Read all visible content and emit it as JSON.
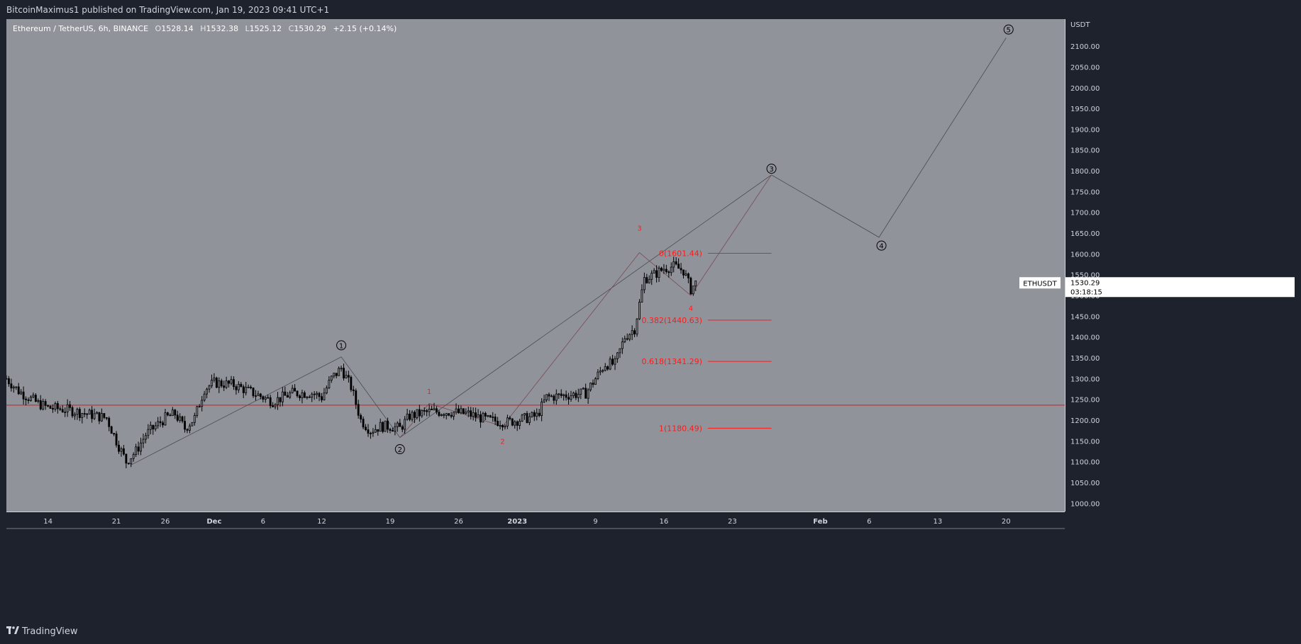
{
  "header": {
    "published_by": "BitcoinMaximus1 published on TradingView.com, Jan 19, 2023 09:41 UTC+1"
  },
  "legend": {
    "symbol": "Ethereum / TetherUS, 6h, BINANCE",
    "o_label": "O",
    "o_value": "1528.14",
    "h_label": "H",
    "h_value": "1532.38",
    "l_label": "L",
    "l_value": "1525.12",
    "c_label": "C",
    "c_value": "1530.29",
    "change": "+2.15 (+0.14%)"
  },
  "axis": {
    "currency": "USDT",
    "ticker_tag": "ETHUSDT",
    "last_price": "1530.29",
    "countdown": "03:18:15"
  },
  "footer": {
    "brand": "TradingView"
  },
  "colors": {
    "background": "#1e222d",
    "plot": "#91939b",
    "candle": "#000000",
    "fib": "#ff1a1a",
    "wave": "#4a4c52",
    "support": "#e01818"
  },
  "chart_data": {
    "type": "candlestick",
    "title": "Ethereum / TetherUS, 6h, BINANCE",
    "y_axis": {
      "unit": "USDT",
      "ylim": [
        980,
        2165
      ],
      "ticks": [
        1000,
        1050,
        1100,
        1150,
        1200,
        1250,
        1300,
        1350,
        1400,
        1450,
        1500,
        1550,
        1600,
        1650,
        1700,
        1750,
        1800,
        1850,
        1900,
        1950,
        2000,
        2050,
        2100
      ]
    },
    "x_axis": {
      "xlim": [
        "2022-11-09T18:00",
        "2023-02-26T00:00"
      ],
      "ticks": [
        {
          "label": "14",
          "date": "2022-11-14"
        },
        {
          "label": "21",
          "date": "2022-11-21"
        },
        {
          "label": "26",
          "date": "2022-11-26"
        },
        {
          "label": "Dec",
          "date": "2022-12-01"
        },
        {
          "label": "6",
          "date": "2022-12-06"
        },
        {
          "label": "12",
          "date": "2022-12-12"
        },
        {
          "label": "19",
          "date": "2022-12-19"
        },
        {
          "label": "26",
          "date": "2022-12-26"
        },
        {
          "label": "2023",
          "date": "2023-01-01"
        },
        {
          "label": "9",
          "date": "2023-01-09"
        },
        {
          "label": "16",
          "date": "2023-01-16"
        },
        {
          "label": "23",
          "date": "2023-01-23"
        },
        {
          "label": "Feb",
          "date": "2023-02-01"
        },
        {
          "label": "6",
          "date": "2023-02-06"
        },
        {
          "label": "13",
          "date": "2023-02-13"
        },
        {
          "label": "20",
          "date": "2023-02-20"
        }
      ]
    },
    "price_path": [
      [
        "2022-11-09T18:00",
        1300
      ],
      [
        "2022-11-11T00:00",
        1270
      ],
      [
        "2022-11-13T00:00",
        1240
      ],
      [
        "2022-11-14T00:00",
        1230
      ],
      [
        "2022-11-16T00:00",
        1225
      ],
      [
        "2022-11-18T00:00",
        1215
      ],
      [
        "2022-11-20T00:00",
        1205
      ],
      [
        "2022-11-21T00:00",
        1150
      ],
      [
        "2022-11-22T00:00",
        1100
      ],
      [
        "2022-11-23T00:00",
        1125
      ],
      [
        "2022-11-24T00:00",
        1165
      ],
      [
        "2022-11-26T00:00",
        1205
      ],
      [
        "2022-11-27T00:00",
        1215
      ],
      [
        "2022-11-28T00:00",
        1180
      ],
      [
        "2022-11-29T00:00",
        1205
      ],
      [
        "2022-11-30T00:00",
        1275
      ],
      [
        "2022-12-01T00:00",
        1290
      ],
      [
        "2022-12-03T00:00",
        1285
      ],
      [
        "2022-12-05T00:00",
        1265
      ],
      [
        "2022-12-07T00:00",
        1245
      ],
      [
        "2022-12-09T00:00",
        1265
      ],
      [
        "2022-12-11T00:00",
        1265
      ],
      [
        "2022-12-12T00:00",
        1255
      ],
      [
        "2022-12-13T00:00",
        1300
      ],
      [
        "2022-12-14T00:00",
        1325
      ],
      [
        "2022-12-15T00:00",
        1280
      ],
      [
        "2022-12-16T00:00",
        1200
      ],
      [
        "2022-12-17T00:00",
        1175
      ],
      [
        "2022-12-18T00:00",
        1185
      ],
      [
        "2022-12-19T00:00",
        1185
      ],
      [
        "2022-12-20T00:00",
        1180
      ],
      [
        "2022-12-21T00:00",
        1210
      ],
      [
        "2022-12-23T00:00",
        1220
      ],
      [
        "2022-12-25T00:00",
        1220
      ],
      [
        "2022-12-27T00:00",
        1215
      ],
      [
        "2022-12-29T00:00",
        1200
      ],
      [
        "2022-12-31T00:00",
        1195
      ],
      [
        "2023-01-02T00:00",
        1205
      ],
      [
        "2023-01-03T00:00",
        1210
      ],
      [
        "2023-01-04T00:00",
        1255
      ],
      [
        "2023-01-06T00:00",
        1260
      ],
      [
        "2023-01-08T00:00",
        1265
      ],
      [
        "2023-01-09T00:00",
        1300
      ],
      [
        "2023-01-10T00:00",
        1335
      ],
      [
        "2023-01-11T00:00",
        1335
      ],
      [
        "2023-01-12T00:00",
        1400
      ],
      [
        "2023-01-13T00:00",
        1420
      ],
      [
        "2023-01-14T00:00",
        1540
      ],
      [
        "2023-01-15T00:00",
        1550
      ],
      [
        "2023-01-16T00:00",
        1565
      ],
      [
        "2023-01-17T00:00",
        1570
      ],
      [
        "2023-01-18T00:00",
        1560
      ],
      [
        "2023-01-18T18:00",
        1515
      ],
      [
        "2023-01-19T06:00",
        1530
      ]
    ],
    "support_level": 1236,
    "fib_levels": [
      {
        "label": "0(1601.44)",
        "value": 1601.44
      },
      {
        "label": "0.382(1440.63)",
        "value": 1440.63
      },
      {
        "label": "0.618(1341.29)",
        "value": 1341.29
      },
      {
        "label": "1(1180.49)",
        "value": 1180.49
      }
    ],
    "wave_markers": [
      {
        "label": "1",
        "style": "circle",
        "date": "2022-12-14T00:00",
        "value": 1380
      },
      {
        "label": "2",
        "style": "circle",
        "date": "2022-12-20T00:00",
        "value": 1130
      },
      {
        "label": "3",
        "style": "circle",
        "date": "2023-01-27T00:00",
        "value": 1805
      },
      {
        "label": "4",
        "style": "circle",
        "date": "2023-02-07T06:00",
        "value": 1620
      },
      {
        "label": "5",
        "style": "circle",
        "date": "2023-02-20T06:00",
        "value": 2140
      },
      {
        "label": "1",
        "style": "sub",
        "date": "2022-12-23T00:00",
        "value": 1270
      },
      {
        "label": "2",
        "style": "sub",
        "date": "2022-12-30T12:00",
        "value": 1150
      },
      {
        "label": "3",
        "style": "sub",
        "date": "2023-01-13T12:00",
        "value": 1663
      },
      {
        "label": "4",
        "style": "sub",
        "date": "2023-01-18T18:00",
        "value": 1470
      }
    ],
    "wave_path": [
      [
        "2022-11-22T12:00",
        1092
      ],
      [
        "2022-12-14T00:00",
        1352
      ],
      [
        "2022-12-20T00:00",
        1158
      ],
      [
        "2023-01-27T00:00",
        1790
      ],
      [
        "2023-02-07T00:00",
        1640
      ],
      [
        "2023-02-20T00:00",
        2120
      ]
    ],
    "subwave_path": [
      [
        "2022-12-20T00:00",
        1158
      ],
      [
        "2022-12-23T00:00",
        1240
      ],
      [
        "2022-12-30T12:00",
        1185
      ],
      [
        "2023-01-13T12:00",
        1603
      ],
      [
        "2023-01-18T18:00",
        1500
      ],
      [
        "2023-01-27T00:00",
        1790
      ]
    ]
  }
}
